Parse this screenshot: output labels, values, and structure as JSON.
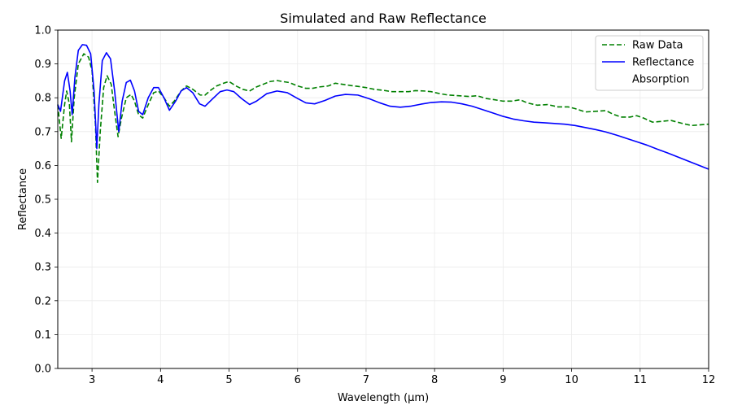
{
  "chart_data": {
    "type": "line",
    "title": "Simulated and Raw Reflectance",
    "xlabel": "Wavelength (μm)",
    "ylabel": "Reflectance",
    "xlim": [
      2.5,
      12
    ],
    "ylim": [
      0.0,
      1.0
    ],
    "xticks": [
      3,
      4,
      5,
      6,
      7,
      8,
      9,
      10,
      11,
      12
    ],
    "yticks": [
      0.0,
      0.1,
      0.2,
      0.3,
      0.4,
      0.5,
      0.6,
      0.7,
      0.8,
      0.9,
      1.0
    ],
    "grid": true,
    "legend_position": "top-right",
    "series": [
      {
        "name": "Raw Data",
        "color": "#008000",
        "style": "dashed",
        "points": [
          [
            2.5,
            0.78
          ],
          [
            2.55,
            0.68
          ],
          [
            2.6,
            0.78
          ],
          [
            2.63,
            0.82
          ],
          [
            2.67,
            0.78
          ],
          [
            2.7,
            0.67
          ],
          [
            2.74,
            0.8
          ],
          [
            2.8,
            0.9
          ],
          [
            2.88,
            0.93
          ],
          [
            2.95,
            0.92
          ],
          [
            3.0,
            0.88
          ],
          [
            3.05,
            0.72
          ],
          [
            3.08,
            0.55
          ],
          [
            3.12,
            0.7
          ],
          [
            3.17,
            0.83
          ],
          [
            3.22,
            0.865
          ],
          [
            3.28,
            0.84
          ],
          [
            3.33,
            0.76
          ],
          [
            3.38,
            0.685
          ],
          [
            3.43,
            0.74
          ],
          [
            3.5,
            0.8
          ],
          [
            3.57,
            0.81
          ],
          [
            3.62,
            0.79
          ],
          [
            3.68,
            0.75
          ],
          [
            3.74,
            0.74
          ],
          [
            3.8,
            0.77
          ],
          [
            3.9,
            0.815
          ],
          [
            3.97,
            0.82
          ],
          [
            4.05,
            0.8
          ],
          [
            4.13,
            0.775
          ],
          [
            4.2,
            0.79
          ],
          [
            4.3,
            0.82
          ],
          [
            4.38,
            0.835
          ],
          [
            4.47,
            0.825
          ],
          [
            4.58,
            0.808
          ],
          [
            4.65,
            0.808
          ],
          [
            4.73,
            0.822
          ],
          [
            4.82,
            0.835
          ],
          [
            4.92,
            0.843
          ],
          [
            5.0,
            0.848
          ],
          [
            5.1,
            0.835
          ],
          [
            5.2,
            0.825
          ],
          [
            5.3,
            0.82
          ],
          [
            5.4,
            0.832
          ],
          [
            5.5,
            0.84
          ],
          [
            5.6,
            0.848
          ],
          [
            5.7,
            0.851
          ],
          [
            5.78,
            0.848
          ],
          [
            5.88,
            0.845
          ],
          [
            6.0,
            0.835
          ],
          [
            6.12,
            0.828
          ],
          [
            6.22,
            0.828
          ],
          [
            6.32,
            0.832
          ],
          [
            6.45,
            0.835
          ],
          [
            6.55,
            0.843
          ],
          [
            6.65,
            0.84
          ],
          [
            6.78,
            0.836
          ],
          [
            6.9,
            0.833
          ],
          [
            7.0,
            0.83
          ],
          [
            7.12,
            0.825
          ],
          [
            7.25,
            0.822
          ],
          [
            7.38,
            0.818
          ],
          [
            7.5,
            0.818
          ],
          [
            7.62,
            0.818
          ],
          [
            7.72,
            0.821
          ],
          [
            7.85,
            0.82
          ],
          [
            7.95,
            0.818
          ],
          [
            8.08,
            0.812
          ],
          [
            8.2,
            0.808
          ],
          [
            8.35,
            0.806
          ],
          [
            8.5,
            0.804
          ],
          [
            8.62,
            0.806
          ],
          [
            8.75,
            0.798
          ],
          [
            8.88,
            0.794
          ],
          [
            9.0,
            0.79
          ],
          [
            9.12,
            0.79
          ],
          [
            9.25,
            0.794
          ],
          [
            9.35,
            0.785
          ],
          [
            9.5,
            0.778
          ],
          [
            9.65,
            0.78
          ],
          [
            9.8,
            0.773
          ],
          [
            9.95,
            0.773
          ],
          [
            10.05,
            0.768
          ],
          [
            10.2,
            0.758
          ],
          [
            10.35,
            0.76
          ],
          [
            10.5,
            0.762
          ],
          [
            10.6,
            0.752
          ],
          [
            10.72,
            0.743
          ],
          [
            10.85,
            0.743
          ],
          [
            10.95,
            0.747
          ],
          [
            11.05,
            0.74
          ],
          [
            11.18,
            0.728
          ],
          [
            11.3,
            0.73
          ],
          [
            11.45,
            0.733
          ],
          [
            11.6,
            0.725
          ],
          [
            11.75,
            0.718
          ],
          [
            11.88,
            0.72
          ],
          [
            12.0,
            0.722
          ]
        ]
      },
      {
        "name": "Reflectance",
        "color": "#0000ff",
        "style": "solid",
        "points": [
          [
            2.5,
            0.78
          ],
          [
            2.54,
            0.76
          ],
          [
            2.6,
            0.85
          ],
          [
            2.64,
            0.875
          ],
          [
            2.68,
            0.82
          ],
          [
            2.71,
            0.75
          ],
          [
            2.75,
            0.86
          ],
          [
            2.8,
            0.94
          ],
          [
            2.86,
            0.957
          ],
          [
            2.92,
            0.955
          ],
          [
            2.98,
            0.93
          ],
          [
            3.03,
            0.82
          ],
          [
            3.07,
            0.65
          ],
          [
            3.1,
            0.78
          ],
          [
            3.15,
            0.91
          ],
          [
            3.21,
            0.933
          ],
          [
            3.27,
            0.915
          ],
          [
            3.33,
            0.82
          ],
          [
            3.39,
            0.7
          ],
          [
            3.44,
            0.79
          ],
          [
            3.5,
            0.845
          ],
          [
            3.56,
            0.852
          ],
          [
            3.62,
            0.82
          ],
          [
            3.68,
            0.76
          ],
          [
            3.74,
            0.75
          ],
          [
            3.82,
            0.8
          ],
          [
            3.9,
            0.83
          ],
          [
            3.97,
            0.83
          ],
          [
            4.05,
            0.8
          ],
          [
            4.13,
            0.763
          ],
          [
            4.22,
            0.79
          ],
          [
            4.3,
            0.82
          ],
          [
            4.38,
            0.83
          ],
          [
            4.47,
            0.815
          ],
          [
            4.57,
            0.782
          ],
          [
            4.65,
            0.775
          ],
          [
            4.75,
            0.795
          ],
          [
            4.87,
            0.818
          ],
          [
            4.97,
            0.823
          ],
          [
            5.07,
            0.818
          ],
          [
            5.18,
            0.798
          ],
          [
            5.3,
            0.78
          ],
          [
            5.4,
            0.79
          ],
          [
            5.55,
            0.812
          ],
          [
            5.7,
            0.82
          ],
          [
            5.85,
            0.815
          ],
          [
            6.0,
            0.798
          ],
          [
            6.12,
            0.785
          ],
          [
            6.25,
            0.782
          ],
          [
            6.4,
            0.792
          ],
          [
            6.55,
            0.805
          ],
          [
            6.7,
            0.81
          ],
          [
            6.88,
            0.808
          ],
          [
            7.05,
            0.797
          ],
          [
            7.2,
            0.785
          ],
          [
            7.35,
            0.775
          ],
          [
            7.5,
            0.772
          ],
          [
            7.65,
            0.775
          ],
          [
            7.8,
            0.781
          ],
          [
            7.95,
            0.786
          ],
          [
            8.1,
            0.788
          ],
          [
            8.25,
            0.787
          ],
          [
            8.4,
            0.782
          ],
          [
            8.55,
            0.775
          ],
          [
            8.7,
            0.765
          ],
          [
            8.85,
            0.755
          ],
          [
            9.0,
            0.745
          ],
          [
            9.15,
            0.737
          ],
          [
            9.3,
            0.732
          ],
          [
            9.45,
            0.728
          ],
          [
            9.6,
            0.726
          ],
          [
            9.75,
            0.724
          ],
          [
            9.9,
            0.722
          ],
          [
            10.05,
            0.718
          ],
          [
            10.2,
            0.712
          ],
          [
            10.35,
            0.706
          ],
          [
            10.5,
            0.699
          ],
          [
            10.65,
            0.69
          ],
          [
            10.8,
            0.68
          ],
          [
            10.95,
            0.67
          ],
          [
            11.1,
            0.66
          ],
          [
            11.25,
            0.648
          ],
          [
            11.4,
            0.637
          ],
          [
            11.55,
            0.625
          ],
          [
            11.7,
            0.613
          ],
          [
            11.85,
            0.601
          ],
          [
            12.0,
            0.589
          ]
        ]
      },
      {
        "name": "Absorption",
        "color": "#ffffff",
        "style": "solid",
        "points": []
      }
    ]
  }
}
